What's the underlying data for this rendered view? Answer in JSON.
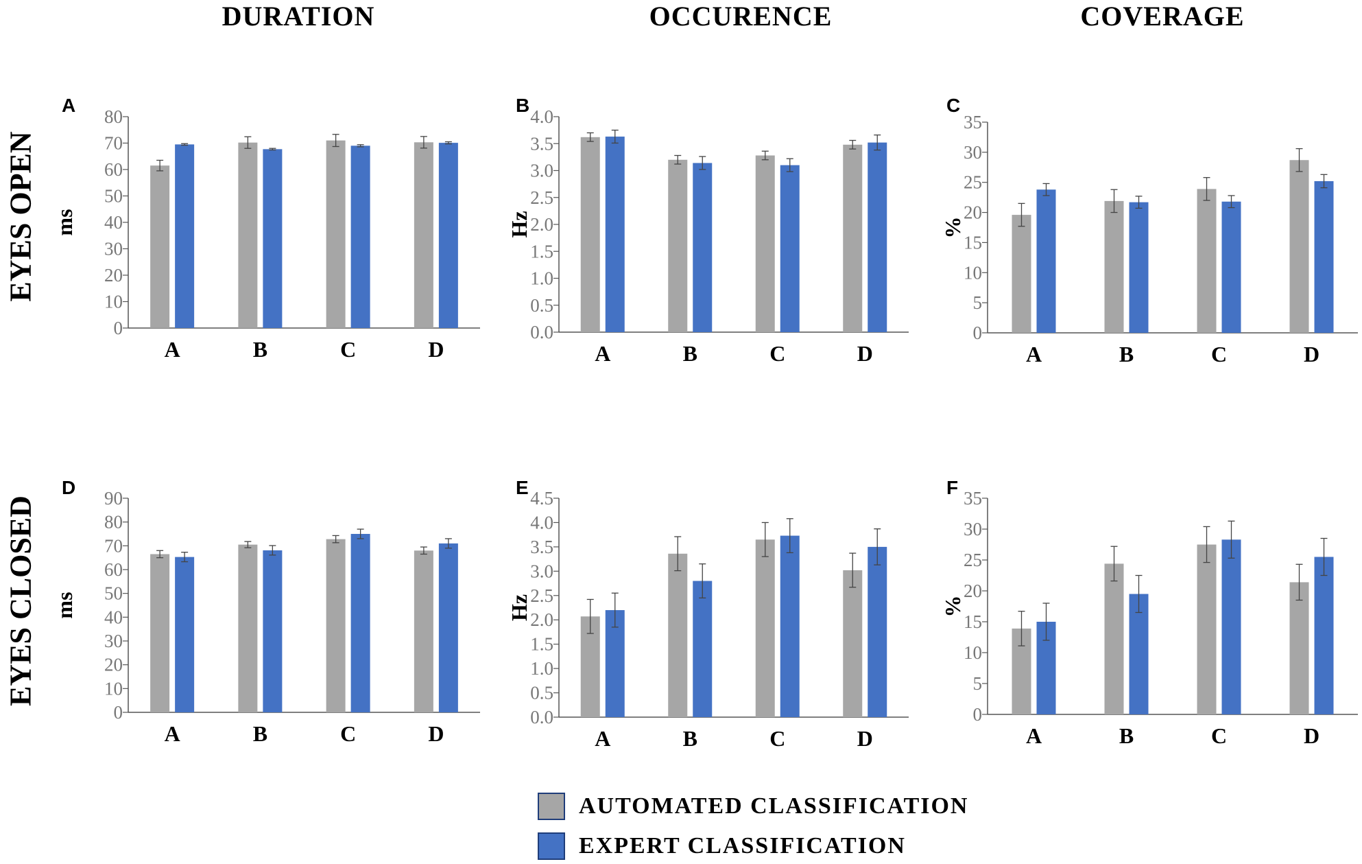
{
  "column_titles": [
    "DURATION",
    "OCCURENCE",
    "COVERAGE"
  ],
  "row_titles": [
    "EYES OPEN",
    "EYES CLOSED"
  ],
  "legend": [
    {
      "label": "AUTOMATED  CLASSIFICATION",
      "color": "#a6a6a6"
    },
    {
      "label": "EXPERT  CLASSIFICATION",
      "color": "#4472c4"
    }
  ],
  "colors": {
    "automated": "#a6a6a6",
    "expert": "#4472c4",
    "axis": "#555555",
    "tick_text": "#777777",
    "error_bar": "#444444"
  },
  "chart_data": [
    {
      "panel": "A",
      "type": "bar",
      "title": "DURATION — EYES OPEN",
      "ylabel": "ms",
      "ylim": [
        0,
        80
      ],
      "yticks": [
        "0",
        "10",
        "20",
        "30",
        "40",
        "50",
        "60",
        "70",
        "80"
      ],
      "categories": [
        "A",
        "B",
        "C",
        "D"
      ],
      "series": [
        {
          "name": "AUTOMATED CLASSIFICATION",
          "values": [
            61.5,
            70.2,
            71.0,
            70.3
          ],
          "errors": [
            2.0,
            2.2,
            2.3,
            2.2
          ]
        },
        {
          "name": "EXPERT CLASSIFICATION",
          "values": [
            69.5,
            67.7,
            69.0,
            70.1
          ],
          "errors": [
            0.3,
            0.3,
            0.4,
            0.4
          ]
        }
      ]
    },
    {
      "panel": "B",
      "type": "bar",
      "title": "OCCURENCE — EYES OPEN",
      "ylabel": "Hz",
      "ylim": [
        0,
        4
      ],
      "yticks": [
        "0.0",
        "0.5",
        "1.0",
        "1.5",
        "2.0",
        "2.5",
        "3.0",
        "3.5",
        "4.0"
      ],
      "categories": [
        "A",
        "B",
        "C",
        "D"
      ],
      "series": [
        {
          "name": "AUTOMATED CLASSIFICATION",
          "values": [
            3.62,
            3.2,
            3.28,
            3.48
          ],
          "errors": [
            0.08,
            0.08,
            0.08,
            0.08
          ]
        },
        {
          "name": "EXPERT CLASSIFICATION",
          "values": [
            3.63,
            3.14,
            3.1,
            3.52
          ],
          "errors": [
            0.12,
            0.12,
            0.12,
            0.14
          ]
        }
      ]
    },
    {
      "panel": "C",
      "type": "bar",
      "title": "COVERAGE — EYES OPEN",
      "ylabel": "%",
      "ylim": [
        0,
        35
      ],
      "yticks": [
        "0",
        "5",
        "10",
        "15",
        "20",
        "25",
        "30",
        "35"
      ],
      "categories": [
        "A",
        "B",
        "C",
        "D"
      ],
      "series": [
        {
          "name": "AUTOMATED CLASSIFICATION",
          "values": [
            19.6,
            21.9,
            23.9,
            28.7
          ],
          "errors": [
            1.9,
            1.9,
            1.9,
            1.9
          ]
        },
        {
          "name": "EXPERT CLASSIFICATION",
          "values": [
            23.8,
            21.7,
            21.8,
            25.2
          ],
          "errors": [
            1.0,
            1.0,
            1.0,
            1.1
          ]
        }
      ]
    },
    {
      "panel": "D",
      "type": "bar",
      "title": "DURATION — EYES CLOSED",
      "ylabel": "ms",
      "ylim": [
        0,
        90
      ],
      "yticks": [
        "0",
        "10",
        "20",
        "30",
        "40",
        "50",
        "60",
        "70",
        "80",
        "90"
      ],
      "categories": [
        "A",
        "B",
        "C",
        "D"
      ],
      "series": [
        {
          "name": "AUTOMATED CLASSIFICATION",
          "values": [
            66.5,
            70.5,
            72.8,
            68.0
          ],
          "errors": [
            1.5,
            1.3,
            1.5,
            1.5
          ]
        },
        {
          "name": "EXPERT CLASSIFICATION",
          "values": [
            65.3,
            68.1,
            75.0,
            71.0
          ],
          "errors": [
            2.0,
            2.0,
            2.0,
            2.0
          ]
        }
      ]
    },
    {
      "panel": "E",
      "type": "bar",
      "title": "OCCURENCE — EYES CLOSED",
      "ylabel": "Hz",
      "ylim": [
        0,
        4.5
      ],
      "yticks": [
        "0.0",
        "0.5",
        "1.0",
        "1.5",
        "2.0",
        "2.5",
        "3.0",
        "3.5",
        "4.0",
        "4.5"
      ],
      "categories": [
        "A",
        "B",
        "C",
        "D"
      ],
      "series": [
        {
          "name": "AUTOMATED CLASSIFICATION",
          "values": [
            2.07,
            3.36,
            3.65,
            3.02
          ],
          "errors": [
            0.35,
            0.35,
            0.35,
            0.35
          ]
        },
        {
          "name": "EXPERT CLASSIFICATION",
          "values": [
            2.2,
            2.8,
            3.73,
            3.5
          ],
          "errors": [
            0.35,
            0.35,
            0.35,
            0.37
          ]
        }
      ]
    },
    {
      "panel": "F",
      "type": "bar",
      "title": "COVERAGE — EYES CLOSED",
      "ylabel": "%",
      "ylim": [
        0,
        35
      ],
      "yticks": [
        "0",
        "5",
        "10",
        "15",
        "20",
        "25",
        "30",
        "35"
      ],
      "categories": [
        "A",
        "B",
        "C",
        "D"
      ],
      "series": [
        {
          "name": "AUTOMATED CLASSIFICATION",
          "values": [
            13.9,
            24.4,
            27.5,
            21.4
          ],
          "errors": [
            2.8,
            2.8,
            2.9,
            2.9
          ]
        },
        {
          "name": "EXPERT CLASSIFICATION",
          "values": [
            15.0,
            19.5,
            28.3,
            25.5
          ],
          "errors": [
            3.0,
            3.0,
            3.0,
            3.0
          ]
        }
      ]
    }
  ]
}
